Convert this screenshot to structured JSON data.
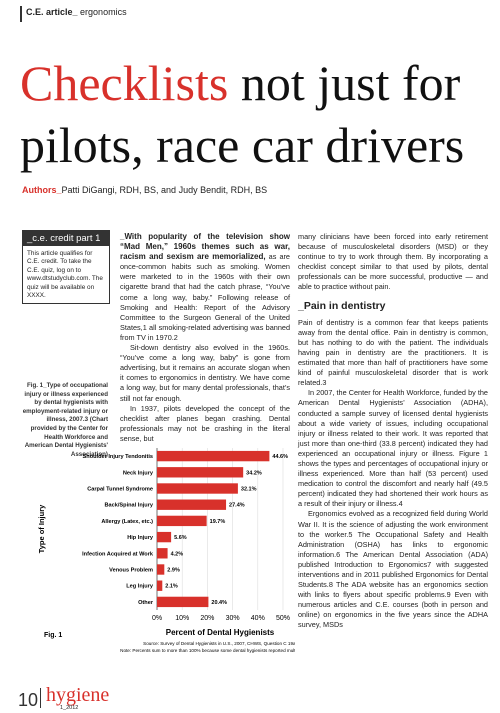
{
  "header": {
    "section": "C.E. article_",
    "topic": "ergonomics"
  },
  "title": {
    "highlight": "Checklists",
    "rest": "not just for pilots, race car drivers"
  },
  "authors": {
    "label": "Authors_",
    "names": "Patti DiGangi, RDH, BS, and Judy Bendit, RDH, BS"
  },
  "sidebar": {
    "heading": "_c.e. credit part 1",
    "text": "This article qualifies for C.E. credit. To take the C.E. quiz, log on to www.dtstudyclub.com. The quiz will be available on XXXX."
  },
  "figure": {
    "caption_label": "Fig. 1_",
    "caption": "Type of occupational injury or illness experienced by dental hygienists with employment-related injury or illness, 2007.3 (Chart provided by the Center for Health Workforce and American Dental Hygienists' Association)",
    "label": "Fig. 1",
    "chart_data": {
      "type": "bar",
      "orientation": "horizontal",
      "y_label": "Type of Injury",
      "x_label": "Percent of Dental Hygienists",
      "categories": [
        "Shoulder Injury Tendonitis",
        "Neck Injury",
        "Carpal Tunnel Syndrome",
        "Back/Spinal Injury",
        "Allergy (Latex, etc.)",
        "Hip Injury",
        "Infection Acquired at Work",
        "Venous Problem",
        "Leg Injury",
        "Other"
      ],
      "values": [
        44.6,
        34.2,
        32.1,
        27.4,
        19.7,
        5.6,
        4.2,
        2.9,
        2.1,
        20.4
      ],
      "value_labels": [
        "44.6%",
        "34.2%",
        "32.1%",
        "27.4%",
        "19.7%",
        "5.6%",
        "4.2%",
        "2.9%",
        "2.1%",
        "20.4%"
      ],
      "color": "#d8312b",
      "grid": true,
      "xlim": [
        0,
        50
      ],
      "xticks": [
        {
          "value": 0,
          "label": "0%"
        },
        {
          "value": 10,
          "label": "10%"
        },
        {
          "value": 20,
          "label": "20%"
        },
        {
          "value": 30,
          "label": "30%"
        },
        {
          "value": 40,
          "label": "40%"
        },
        {
          "value": 50,
          "label": "50%"
        }
      ]
    },
    "source": "Source: Survey of Dental Hygienists in U.S., 2007, CHWS, Question C 19a.",
    "note": "Note: Percents sum to more than 100% because some dental hygienists reported multiple injuries."
  },
  "article": {
    "middle": [
      {
        "lead": "_With popularity of the television show “Mad Men,” 1960s themes such as war, racism and sexism are memorialized,",
        "text": " as are once-common habits such as smoking. Women were marketed to in the 1960s with their own cigarette brand that had the catch phrase, “You’ve come a long way, baby.” Following release of Smoking and Health: Report of the Advisory Committee to the Surgeon General of the United States,1 all smoking-related advertising was banned from TV in 1970.2"
      },
      {
        "text": "Sit-down dentistry also evolved in the 1960s. “You’ve come a long way, baby” is gone from advertising, but it remains an accurate slogan when it comes to ergonomics in dentistry. We have come a long way, but for many dental professionals, that’s still not far enough."
      },
      {
        "text": "In 1937, pilots developed the concept of the checklist after planes began crashing. Dental professionals may not be crashing in the literal sense, but"
      }
    ],
    "right": [
      {
        "text": "many clinicians have been forced into early retirement because of musculoskeletal disorders (MSD) or they continue to try to work through them. By incorporating a checklist concept similar to that used by pilots, dental professionals can be more successful, productive — and able to practice without pain."
      },
      {
        "heading": "_Pain in dentistry"
      },
      {
        "text": "Pain of dentistry is a common fear that keeps patients away from the dental office. Pain in dentistry is common, but has nothing to do with the patient. The individuals having pain in dentistry are the practitioners. It is estimated that more than half of practitioners have some kind of painful musculoskeletal disorder that is work related.3"
      },
      {
        "text": "In 2007, the Center for Health Workforce, funded by the American Dental Hygienists’ Association (ADHA), conducted a sample survey of licensed dental hygienists about a wide variety of issues, including occupational injury or illness related to their work. It was reported that just more than one-third (33.8 percent) indicated they had experienced an occupational injury or illness. Figure 1 shows the types and percentages of occupational injury or illness experienced. More than half (53 percent) used medication to control the discomfort and nearly half (49.5 percent) indicated they had shortened their work hours as a result of their injury or illness.4"
      },
      {
        "text": "Ergonomics evolved as a recognized field during World War II. It is the science of adjusting the work environment to the worker.5 The Occupational Safety and Health Administration (OSHA) has links to ergonomic information.6 The American Dental Association (ADA) published Introduction to Ergonomics7 with suggested interventions and in 2011 published Ergonomics for Dental Students.8 The ADA website has an ergonomics section with links to flyers about specific problems.9 Even with numerous articles and C.E. courses (both in person and online) on ergonomics in the five years since the ADHA survey, MSDs"
      }
    ]
  },
  "footer": {
    "page": "10",
    "magazine": "hygiene",
    "issue": "1_2012"
  }
}
